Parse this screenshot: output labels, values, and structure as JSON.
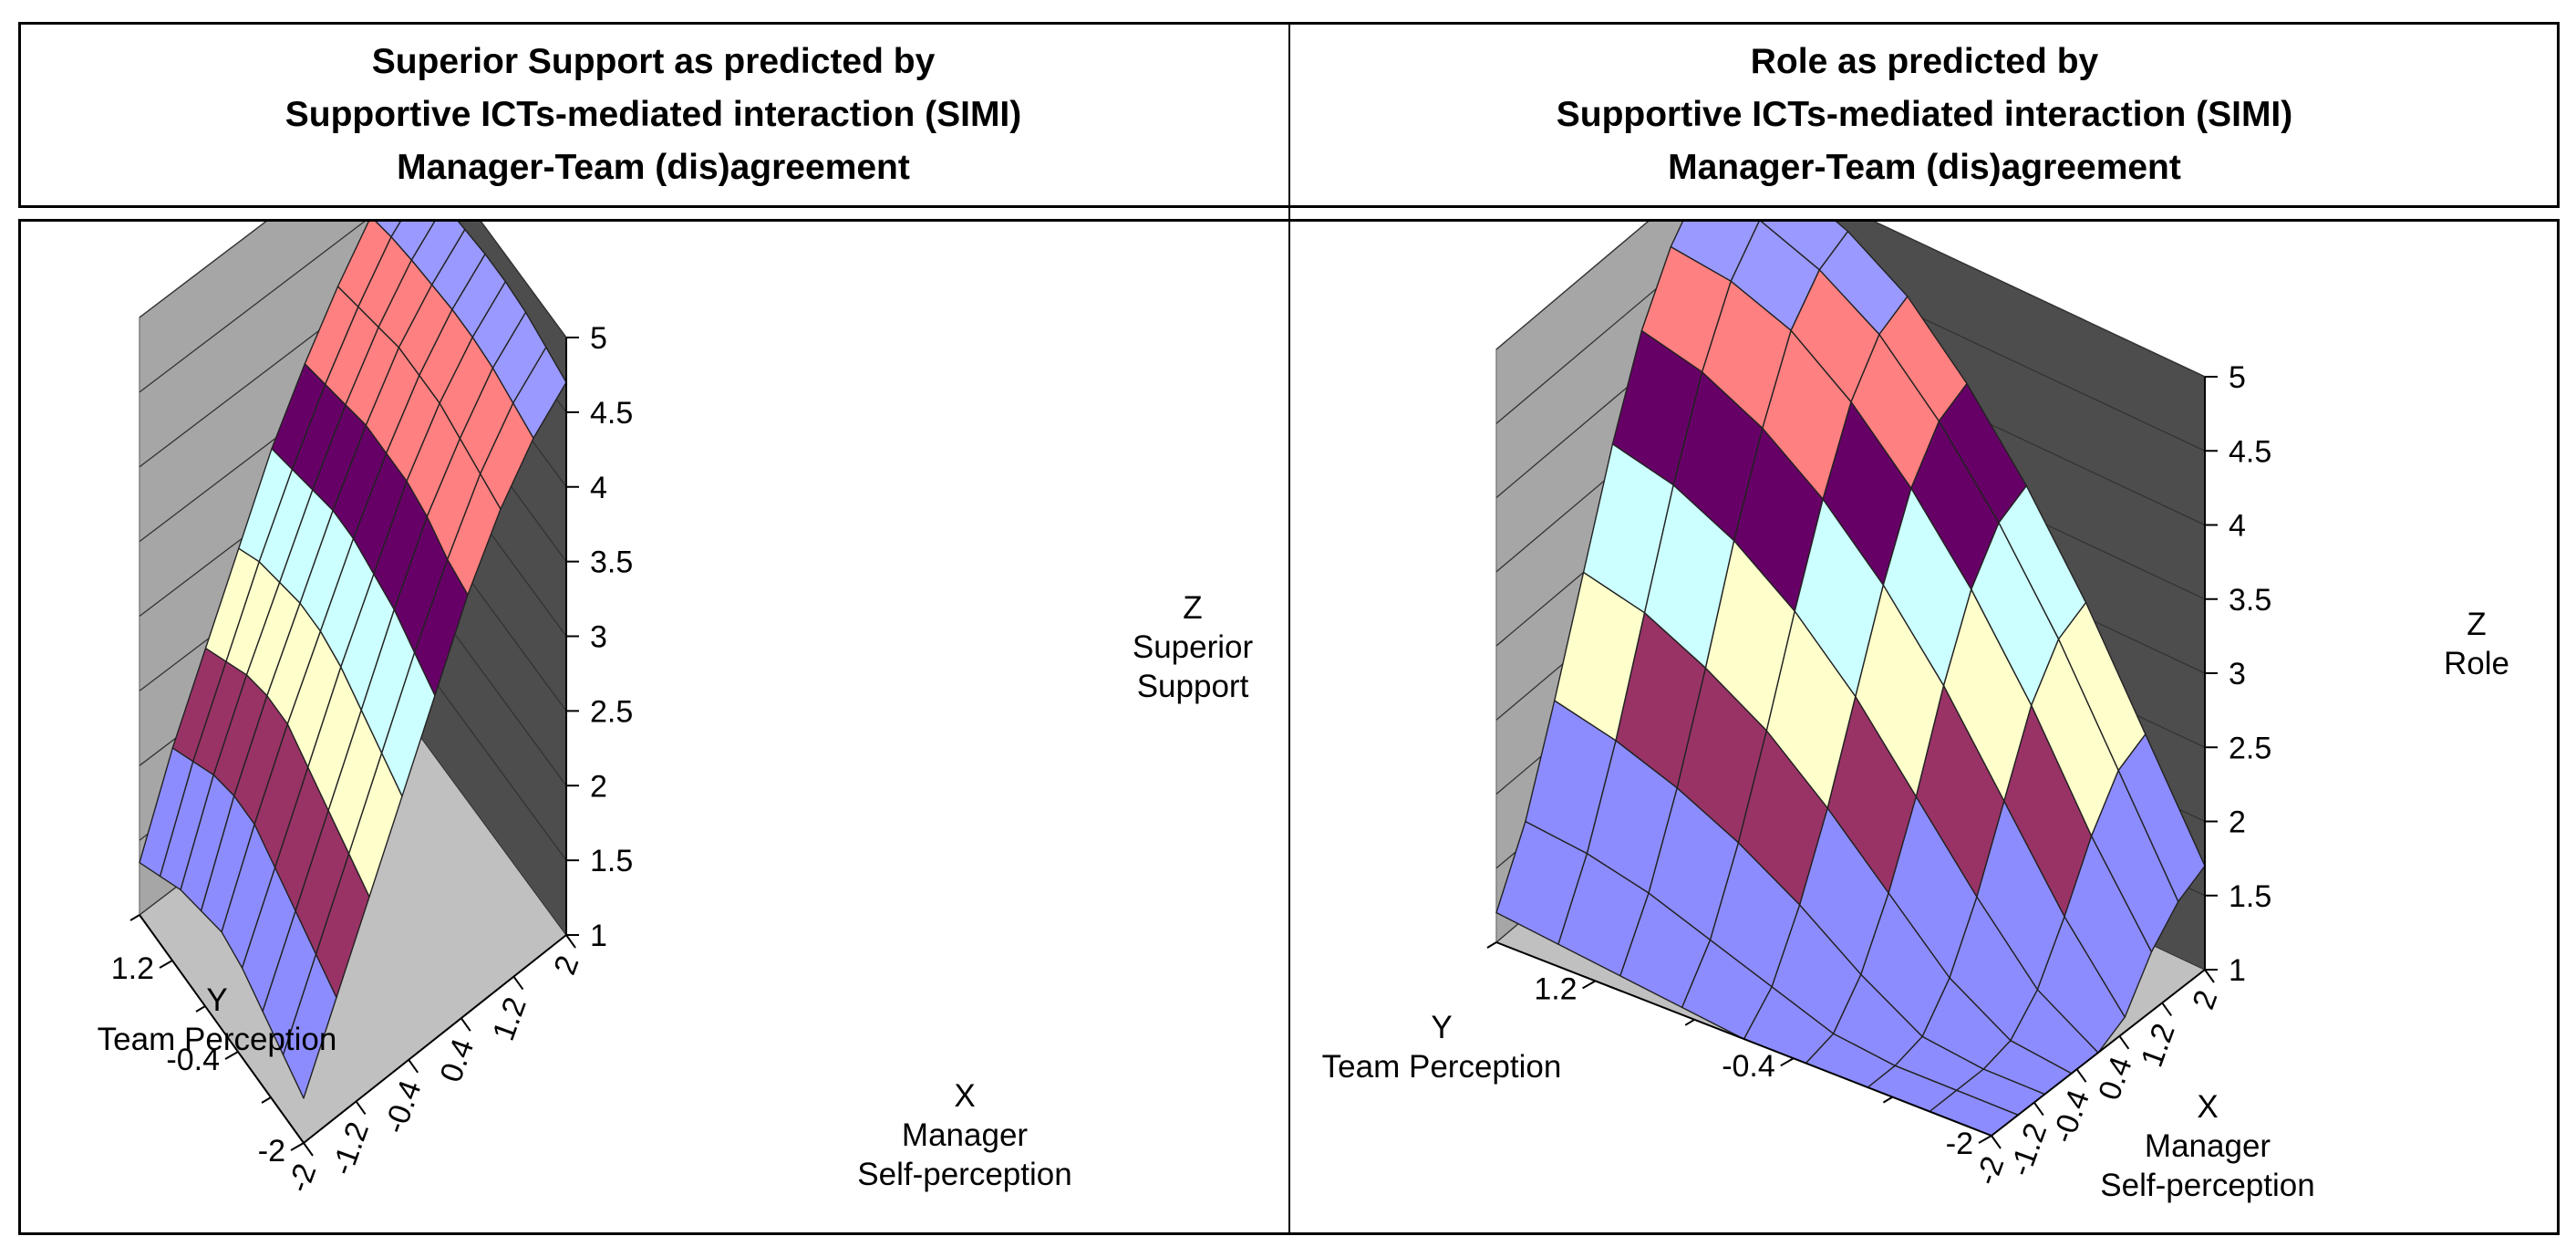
{
  "chart_data": [
    {
      "type": "surface3d",
      "title_lines": [
        "Superior Support as predicted by",
        "Supportive ICTs-mediated interaction (SIMI)",
        "Manager-Team (dis)agreement"
      ],
      "xlabel": [
        "X",
        "Manager",
        "Self-perception"
      ],
      "ylabel": [
        "Y",
        "Team Perception"
      ],
      "zlabel": [
        "Z",
        "Superior",
        "Support"
      ],
      "x_ticks": [
        "-2",
        "-1.2",
        "-0.4",
        "0.4",
        "1.2",
        "2"
      ],
      "y_ticks": [
        "1.2",
        "-0.4",
        "-2"
      ],
      "z_ticks": [
        "1",
        "1.5",
        "2",
        "2.5",
        "3",
        "3.5",
        "4",
        "4.5",
        "5"
      ],
      "xlim": [
        -2,
        2
      ],
      "ylim": [
        -2,
        2
      ],
      "zlim": [
        1,
        5
      ],
      "surface": {
        "x": [
          -2,
          -1.5,
          -1,
          -0.5,
          0,
          0.5,
          1,
          1.5,
          2
        ],
        "y": [
          -2,
          -1.5,
          -1,
          -0.5,
          0,
          0.5,
          1,
          1.5,
          2
        ],
        "z": [
          [
            1.3,
            1.8,
            2.3,
            2.8,
            3.3,
            3.8,
            4.2,
            4.5,
            4.7
          ],
          [
            1.4,
            1.9,
            2.4,
            2.9,
            3.4,
            3.85,
            4.25,
            4.55,
            4.75
          ],
          [
            1.5,
            2.0,
            2.5,
            3.0,
            3.5,
            3.95,
            4.3,
            4.6,
            4.8
          ],
          [
            1.6,
            2.1,
            2.6,
            3.1,
            3.55,
            4.0,
            4.35,
            4.62,
            4.82
          ],
          [
            1.65,
            2.2,
            2.7,
            3.15,
            3.6,
            4.0,
            4.35,
            4.62,
            4.82
          ],
          [
            1.6,
            2.2,
            2.7,
            3.15,
            3.6,
            4.0,
            4.35,
            4.6,
            4.8
          ],
          [
            1.55,
            2.15,
            2.65,
            3.1,
            3.55,
            3.95,
            4.3,
            4.58,
            4.78
          ],
          [
            1.45,
            2.05,
            2.55,
            3.05,
            3.5,
            3.9,
            4.25,
            4.55,
            4.75
          ],
          [
            1.35,
            1.95,
            2.45,
            2.95,
            3.45,
            3.85,
            4.2,
            4.5,
            4.7
          ]
        ]
      },
      "color_bands": [
        {
          "from": 1.0,
          "to": 1.5,
          "color": "#8c8cff"
        },
        {
          "from": 1.5,
          "to": 2.0,
          "color": "#8c8cff"
        },
        {
          "from": 2.0,
          "to": 2.5,
          "color": "#993366"
        },
        {
          "from": 2.5,
          "to": 3.0,
          "color": "#ffffcc"
        },
        {
          "from": 3.0,
          "to": 3.5,
          "color": "#ccffff"
        },
        {
          "from": 3.5,
          "to": 4.0,
          "color": "#660066"
        },
        {
          "from": 4.0,
          "to": 4.5,
          "color": "#ff8080"
        },
        {
          "from": 4.5,
          "to": 5.0,
          "color": "#9999ff"
        }
      ]
    },
    {
      "type": "surface3d",
      "title_lines": [
        "Role as predicted by",
        "Supportive ICTs-mediated interaction (SIMI)",
        "Manager-Team (dis)agreement"
      ],
      "xlabel": [
        "X",
        "Manager",
        "Self-perception"
      ],
      "ylabel": [
        "Y",
        "Team Perception"
      ],
      "zlabel": [
        "Z",
        "Role"
      ],
      "x_ticks": [
        "-2",
        "-1.2",
        "-0.4",
        "0.4",
        "1.2",
        "2"
      ],
      "y_ticks": [
        "1.2",
        "-0.4",
        "-2"
      ],
      "z_ticks": [
        "1",
        "1.5",
        "2",
        "2.5",
        "3",
        "3.5",
        "4",
        "4.5",
        "5"
      ],
      "xlim": [
        -2,
        2
      ],
      "ylim": [
        -2,
        2
      ],
      "zlim": [
        1,
        5
      ],
      "surface": {
        "x": [
          -2,
          -1.5,
          -1,
          -0.5,
          0,
          0.5,
          1,
          1.5,
          2
        ],
        "y": [
          -2,
          -1.5,
          -1,
          -0.5,
          0,
          0.5,
          1,
          1.5,
          2
        ],
        "z": [
          [
            1.0,
            1.0,
            1.0,
            1.0,
            1.0,
            1.1,
            1.4,
            1.6,
            1.7
          ],
          [
            1.0,
            1.0,
            1.0,
            1.05,
            1.25,
            1.6,
            2.0,
            2.3,
            2.4
          ],
          [
            1.0,
            1.0,
            1.05,
            1.3,
            1.7,
            2.2,
            2.7,
            3.0,
            3.1
          ],
          [
            1.0,
            1.05,
            1.3,
            1.7,
            2.2,
            2.8,
            3.3,
            3.6,
            3.7
          ],
          [
            1.0,
            1.2,
            1.6,
            2.1,
            2.7,
            3.3,
            3.8,
            4.1,
            4.2
          ],
          [
            1.05,
            1.35,
            1.85,
            2.45,
            3.1,
            3.7,
            4.2,
            4.5,
            4.6
          ],
          [
            1.1,
            1.5,
            2.05,
            2.7,
            3.4,
            4.0,
            4.5,
            4.75,
            4.85
          ],
          [
            1.15,
            1.6,
            2.2,
            2.9,
            3.6,
            4.2,
            4.65,
            4.9,
            5.0
          ],
          [
            1.2,
            1.65,
            2.3,
            3.0,
            3.7,
            4.3,
            4.7,
            4.95,
            5.0
          ]
        ]
      },
      "color_bands": [
        {
          "from": 1.0,
          "to": 1.5,
          "color": "#8c8cff"
        },
        {
          "from": 1.5,
          "to": 2.0,
          "color": "#8c8cff"
        },
        {
          "from": 2.0,
          "to": 2.5,
          "color": "#993366"
        },
        {
          "from": 2.5,
          "to": 3.0,
          "color": "#ffffcc"
        },
        {
          "from": 3.0,
          "to": 3.5,
          "color": "#ccffff"
        },
        {
          "from": 3.5,
          "to": 4.0,
          "color": "#660066"
        },
        {
          "from": 4.0,
          "to": 4.5,
          "color": "#ff8080"
        },
        {
          "from": 4.5,
          "to": 5.0,
          "color": "#9999ff"
        }
      ]
    }
  ]
}
